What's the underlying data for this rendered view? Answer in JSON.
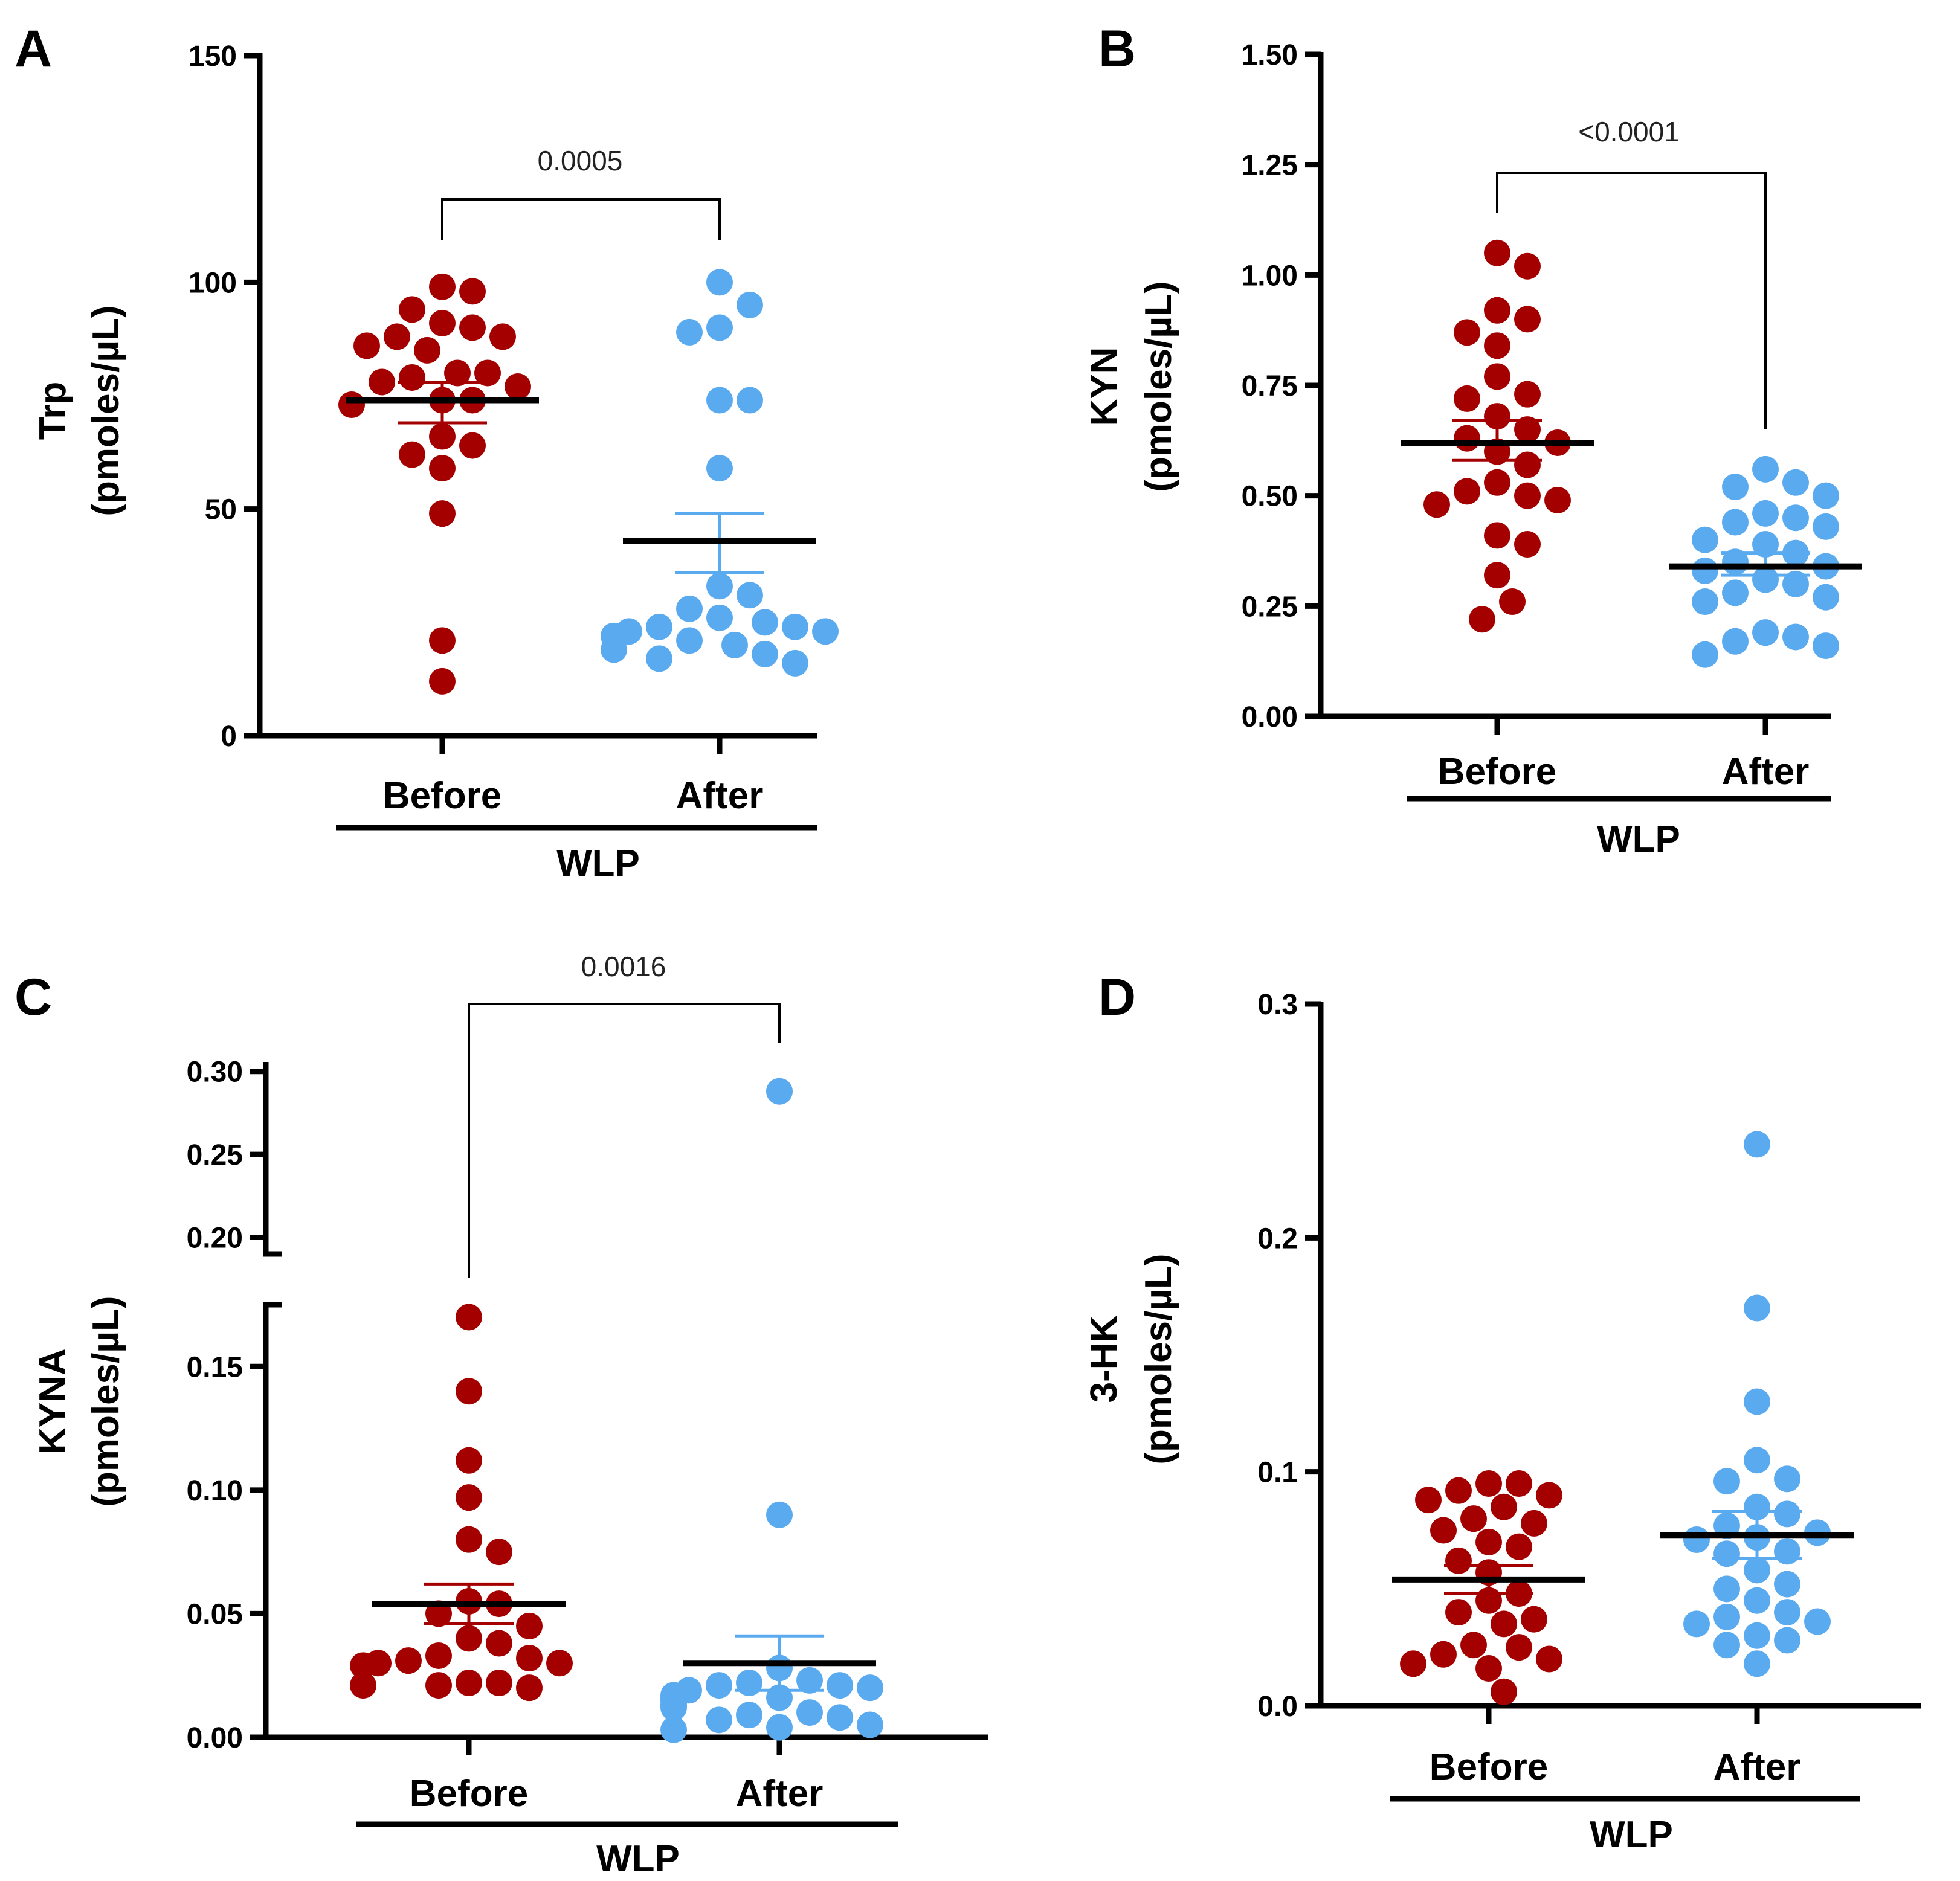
{
  "figure": {
    "group_title": "WLP",
    "categories": [
      "Before",
      "After"
    ],
    "colors": {
      "before": "#a50000",
      "after": "#5aaaf0",
      "mean": "#000000"
    }
  },
  "chart_data": [
    {
      "panel": "A",
      "type": "scatter",
      "ylabel_line1": "Trp",
      "ylabel_line2": "(pmoles/µL)",
      "ylim": [
        0,
        150
      ],
      "yticks": [
        0,
        50,
        100,
        150
      ],
      "ytick_labels": [
        "0",
        "50",
        "100",
        "150"
      ],
      "categories": [
        "Before",
        "After"
      ],
      "xgroup_label": "WLP",
      "p_value": "0.0005",
      "series": [
        {
          "name": "Before",
          "mean": 74,
          "sem_low": 69,
          "sem_high": 78,
          "values": [
            99,
            98,
            94,
            91,
            90,
            88,
            88,
            86,
            85,
            80,
            80,
            79,
            78,
            77,
            74,
            74,
            73,
            66,
            64,
            62,
            59,
            49,
            21,
            12
          ]
        },
        {
          "name": "After",
          "mean": 43,
          "sem_low": 36,
          "sem_high": 49,
          "values": [
            100,
            95,
            90,
            89,
            74,
            74,
            59,
            33,
            31,
            28,
            26,
            25,
            24,
            24,
            23,
            23,
            22,
            22,
            21,
            20,
            19,
            18,
            17,
            16
          ]
        }
      ]
    },
    {
      "panel": "B",
      "type": "scatter",
      "ylabel_line1": "KYN",
      "ylabel_line2": "(pmoles/µL)",
      "ylim": [
        0,
        1.5
      ],
      "yticks": [
        0,
        0.25,
        0.5,
        0.75,
        1.0,
        1.25,
        1.5
      ],
      "ytick_labels": [
        "0.00",
        "0.25",
        "0.50",
        "0.75",
        "1.00",
        "1.25",
        "1.50"
      ],
      "categories": [
        "Before",
        "After"
      ],
      "xgroup_label": "WLP",
      "p_value": "<0.0001",
      "series": [
        {
          "name": "Before",
          "mean": 0.62,
          "sem_low": 0.58,
          "sem_high": 0.67,
          "values": [
            1.05,
            1.02,
            0.92,
            0.9,
            0.87,
            0.84,
            0.77,
            0.73,
            0.72,
            0.68,
            0.65,
            0.63,
            0.62,
            0.6,
            0.57,
            0.53,
            0.51,
            0.5,
            0.49,
            0.48,
            0.41,
            0.39,
            0.32,
            0.26,
            0.22
          ]
        },
        {
          "name": "After",
          "mean": 0.34,
          "sem_low": 0.32,
          "sem_high": 0.37,
          "values": [
            0.56,
            0.53,
            0.52,
            0.5,
            0.46,
            0.45,
            0.44,
            0.43,
            0.4,
            0.39,
            0.37,
            0.35,
            0.34,
            0.33,
            0.31,
            0.3,
            0.28,
            0.27,
            0.26,
            0.19,
            0.18,
            0.17,
            0.16,
            0.14
          ]
        }
      ]
    },
    {
      "panel": "C",
      "type": "scatter",
      "ylabel_line1": "KYNA",
      "ylabel_line2": "(pmoles/µL)",
      "ylim_lower": [
        0,
        0.175
      ],
      "ylim_upper": [
        0.19,
        0.305
      ],
      "yticks_lower": [
        0,
        0.05,
        0.1,
        0.15
      ],
      "ytick_labels_lower": [
        "0.00",
        "0.05",
        "0.10",
        "0.15"
      ],
      "yticks_upper": [
        0.2,
        0.25,
        0.3
      ],
      "ytick_labels_upper": [
        "0.20",
        "0.25",
        "0.30"
      ],
      "broken_axis": true,
      "categories": [
        "Before",
        "After"
      ],
      "xgroup_label": "WLP",
      "p_value": "0.0016",
      "series": [
        {
          "name": "Before",
          "mean": 0.054,
          "sem_low": 0.046,
          "sem_high": 0.062,
          "values": [
            0.17,
            0.14,
            0.112,
            0.097,
            0.08,
            0.075,
            0.055,
            0.054,
            0.05,
            0.045,
            0.04,
            0.038,
            0.033,
            0.032,
            0.031,
            0.03,
            0.03,
            0.029,
            0.022,
            0.022,
            0.021,
            0.021,
            0.02
          ]
        },
        {
          "name": "After",
          "mean": 0.03,
          "sem_low": 0.019,
          "sem_high": 0.041,
          "values": [
            0.288,
            0.09,
            0.028,
            0.023,
            0.022,
            0.021,
            0.021,
            0.02,
            0.019,
            0.017,
            0.016,
            0.016,
            0.015,
            0.015,
            0.013,
            0.013,
            0.012,
            0.01,
            0.009,
            0.008,
            0.007,
            0.005,
            0.004,
            0.003
          ]
        }
      ]
    },
    {
      "panel": "D",
      "type": "scatter",
      "ylabel_line1": "3-HK",
      "ylabel_line2": "(pmoles/µL)",
      "ylim": [
        0,
        0.3
      ],
      "yticks": [
        0,
        0.1,
        0.2,
        0.3
      ],
      "ytick_labels": [
        "0.0",
        "0.1",
        "0.2",
        "0.3"
      ],
      "categories": [
        "Before",
        "After"
      ],
      "xgroup_label": "WLP",
      "p_value": "",
      "series": [
        {
          "name": "Before",
          "mean": 0.054,
          "sem_low": 0.048,
          "sem_high": 0.06,
          "values": [
            0.095,
            0.095,
            0.092,
            0.09,
            0.088,
            0.085,
            0.08,
            0.078,
            0.075,
            0.07,
            0.068,
            0.062,
            0.057,
            0.048,
            0.045,
            0.04,
            0.037,
            0.035,
            0.026,
            0.025,
            0.022,
            0.02,
            0.018,
            0.016,
            0.006
          ]
        },
        {
          "name": "After",
          "mean": 0.073,
          "sem_low": 0.063,
          "sem_high": 0.083,
          "values": [
            0.24,
            0.17,
            0.13,
            0.105,
            0.097,
            0.096,
            0.085,
            0.082,
            0.077,
            0.074,
            0.072,
            0.071,
            0.066,
            0.065,
            0.058,
            0.052,
            0.05,
            0.045,
            0.04,
            0.038,
            0.036,
            0.035,
            0.03,
            0.028,
            0.026,
            0.018
          ]
        }
      ]
    }
  ]
}
